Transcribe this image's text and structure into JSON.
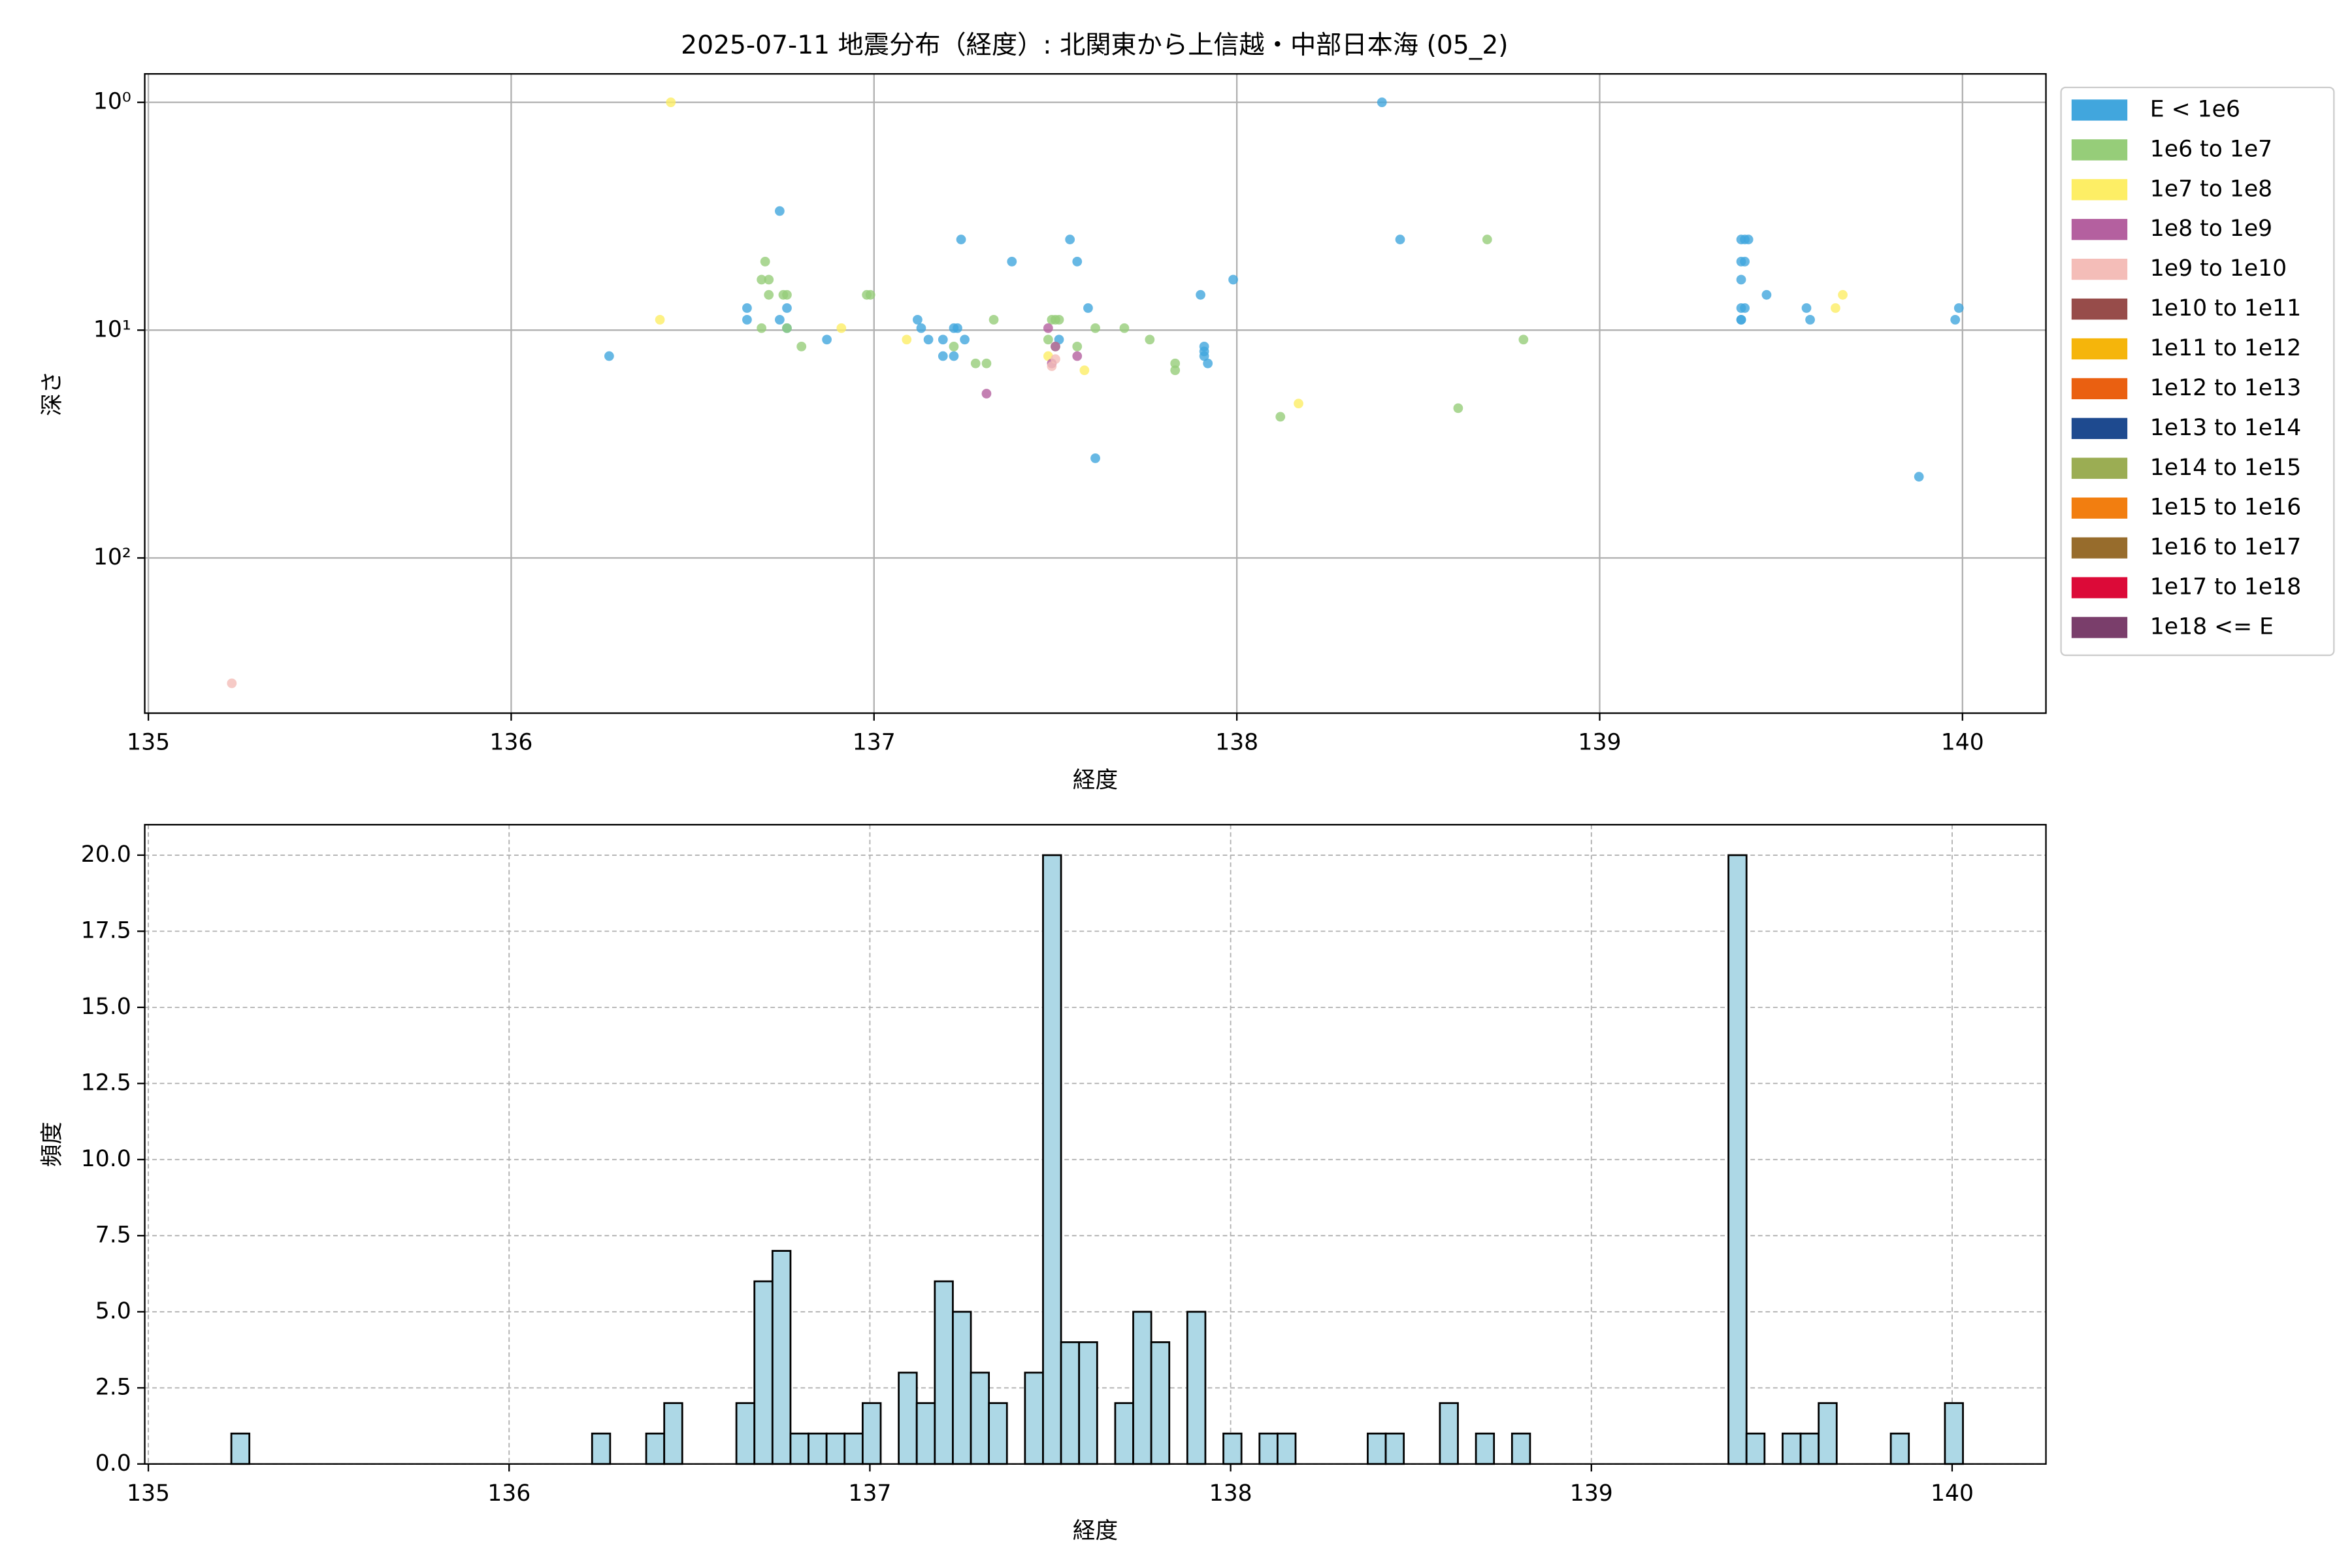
{
  "chart_data": [
    {
      "type": "scatter",
      "title": "2025-07-11 地震分布（経度）: 北関東から上信越・中部日本海 (05_2)",
      "x_label": "経度",
      "y_label": "深さ",
      "log_y": true,
      "grid": true,
      "legend": "right",
      "xlim": [
        134.99,
        140.23
      ],
      "xticks": [
        135,
        136,
        137,
        138,
        139,
        140
      ],
      "ylim": [
        480,
        0.75
      ],
      "yticks": [
        {
          "value": 1,
          "label": "10⁰"
        },
        {
          "value": 10,
          "label": "10¹"
        },
        {
          "value": 100,
          "label": "10²"
        }
      ],
      "series": [
        {
          "name": "E < 1e6",
          "color": "#41a6dd",
          "x": [
            136.27,
            136.65,
            136.65,
            136.74,
            136.74,
            136.76,
            136.76,
            136.87,
            137.12,
            137.13,
            137.15,
            137.19,
            137.19,
            137.22,
            137.22,
            137.23,
            137.25,
            137.24,
            137.38,
            137.51,
            137.54,
            137.56,
            137.59,
            137.61,
            137.9,
            137.91,
            137.91,
            137.91,
            137.92,
            137.99,
            138.4,
            138.45,
            139.39,
            139.4,
            139.41,
            139.39,
            139.4,
            139.39,
            139.39,
            139.4,
            139.39,
            139.39,
            139.46,
            139.57,
            139.58,
            139.88,
            139.98,
            139.99
          ],
          "values": [
            13,
            8,
            9,
            3,
            9,
            8,
            9.8,
            11,
            9,
            9.8,
            11,
            13,
            11,
            13,
            9.8,
            9.8,
            11,
            4,
            5,
            11,
            4,
            5,
            8,
            36.5,
            7,
            11.8,
            12.4,
            13,
            14,
            6,
            1,
            4,
            4,
            4,
            4,
            5,
            5,
            6,
            8,
            8,
            9,
            9,
            7,
            8,
            9,
            44,
            9,
            8
          ]
        },
        {
          "name": "1e6 to 1e7",
          "color": "#96cd79",
          "x": [
            136.69,
            136.69,
            136.7,
            136.71,
            136.71,
            136.75,
            136.76,
            136.76,
            136.8,
            136.98,
            136.99,
            137.22,
            137.28,
            137.31,
            137.33,
            137.49,
            137.5,
            137.51,
            137.48,
            137.5,
            137.56,
            137.61,
            137.69,
            137.76,
            137.83,
            137.83,
            138.12,
            138.61,
            138.69,
            138.79
          ],
          "values": [
            9.8,
            6,
            5,
            7,
            6,
            7,
            7,
            9.8,
            11.8,
            7,
            7,
            11.8,
            14,
            14,
            9,
            9,
            9,
            9,
            11,
            11.8,
            11.8,
            9.8,
            9.8,
            11,
            14,
            15,
            24,
            22,
            4,
            11
          ]
        },
        {
          "name": "1e7 to 1e8",
          "color": "#fdee65",
          "x": [
            136.44,
            136.41,
            136.91,
            137.09,
            137.48,
            137.58,
            138.17,
            139.65,
            139.67
          ],
          "values": [
            1,
            9,
            9.8,
            11,
            13,
            15,
            21,
            8,
            7
          ]
        },
        {
          "name": "1e8 to 1e9",
          "color": "#b4609f",
          "x": [
            137.31,
            137.48,
            137.49,
            137.5,
            137.56
          ],
          "values": [
            19,
            9.8,
            14,
            11.8,
            13
          ]
        },
        {
          "name": "1e9 to 1e10",
          "color": "#f4bdb8",
          "x": [
            135.23,
            137.49,
            137.5
          ],
          "values": [
            355,
            14.4,
            13.4
          ]
        },
        {
          "name": "1e10 to 1e11",
          "color": "#974c4a",
          "x": [],
          "values": []
        },
        {
          "name": "1e11 to 1e12",
          "color": "#f5b50b",
          "x": [],
          "values": []
        },
        {
          "name": "1e12 to 1e13",
          "color": "#ea6011",
          "x": [],
          "values": []
        },
        {
          "name": "1e13 to 1e14",
          "color": "#1e4a8f",
          "x": [],
          "values": []
        },
        {
          "name": "1e14 to 1e15",
          "color": "#9bad53",
          "x": [],
          "values": []
        },
        {
          "name": "1e15 to 1e16",
          "color": "#f27e10",
          "x": [],
          "values": []
        },
        {
          "name": "1e16 to 1e17",
          "color": "#976c2c",
          "x": [],
          "values": []
        },
        {
          "name": "1e17 to 1e18",
          "color": "#dc0a38",
          "x": [],
          "values": []
        },
        {
          "name": "1e18 <= E",
          "color": "#7a3e6b",
          "x": [],
          "values": []
        }
      ]
    },
    {
      "type": "histogram",
      "x_label": "経度",
      "y_label": "頻度",
      "grid": true,
      "color": "#add8e6",
      "xlim": [
        134.99,
        140.26
      ],
      "xticks": [
        135,
        136,
        137,
        138,
        139,
        140
      ],
      "ylim": [
        0,
        21
      ],
      "yticks": [
        {
          "value": 0,
          "label": "0.0"
        },
        2.5,
        {
          "value": 5,
          "label": "5.0"
        },
        7.5,
        {
          "value": 10,
          "label": "10.0"
        },
        12.5,
        {
          "value": 15,
          "label": "15.0"
        },
        17.5,
        {
          "value": 20,
          "label": "20.0"
        }
      ],
      "bins": [
        135.23,
        135.28,
        135.33,
        135.38,
        135.43,
        135.48,
        135.53,
        135.58,
        135.63,
        135.68,
        135.73,
        135.78,
        135.83,
        135.88,
        135.93,
        135.98,
        136.03,
        136.08,
        136.13,
        136.18,
        136.23,
        136.28,
        136.33,
        136.38,
        136.43,
        136.48,
        136.53,
        136.58,
        136.63,
        136.68,
        136.73,
        136.78,
        136.83,
        136.88,
        136.93,
        136.98,
        137.03,
        137.08,
        137.13,
        137.18,
        137.23,
        137.28,
        137.33,
        137.38,
        137.43,
        137.48,
        137.53,
        137.58,
        137.63,
        137.68,
        137.73,
        137.78,
        137.83,
        137.88,
        137.93,
        137.98,
        138.03,
        138.08,
        138.13,
        138.18,
        138.23,
        138.28,
        138.33,
        138.38,
        138.43,
        138.48,
        138.53,
        138.58,
        138.63,
        138.68,
        138.73,
        138.78,
        138.83,
        138.88,
        138.93,
        138.98,
        139.03,
        139.08,
        139.13,
        139.18,
        139.23,
        139.28,
        139.33,
        139.38,
        139.43,
        139.48,
        139.53,
        139.58,
        139.63,
        139.68,
        139.73,
        139.78,
        139.83,
        139.88,
        139.93,
        139.98,
        140.03
      ],
      "values": [
        1,
        0,
        0,
        0,
        0,
        0,
        0,
        0,
        0,
        0,
        0,
        0,
        0,
        0,
        0,
        0,
        0,
        0,
        0,
        0,
        1,
        0,
        0,
        1,
        2,
        0,
        0,
        0,
        2,
        6,
        7,
        1,
        1,
        1,
        1,
        2,
        0,
        3,
        2,
        6,
        5,
        3,
        2,
        0,
        3,
        20,
        4,
        4,
        0,
        2,
        5,
        4,
        0,
        5,
        0,
        1,
        0,
        1,
        1,
        0,
        0,
        0,
        0,
        1,
        1,
        0,
        0,
        2,
        0,
        1,
        0,
        1,
        0,
        0,
        0,
        0,
        0,
        0,
        0,
        0,
        0,
        0,
        0,
        20,
        1,
        0,
        1,
        1,
        2,
        0,
        0,
        0,
        1,
        0,
        0,
        2
      ]
    }
  ]
}
